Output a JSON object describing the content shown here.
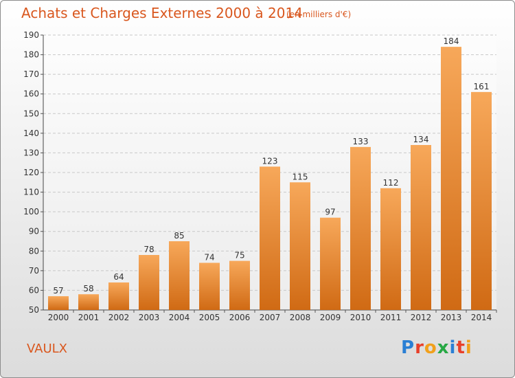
{
  "header": {
    "title": "Achats et Charges Externes 2000 à 2014",
    "subtitle": "(en milliers d'€)"
  },
  "footer": {
    "commune": "VAULX",
    "logo_text": "Proxiti",
    "logo_colors": [
      "#2a7fd4",
      "#e8402a",
      "#f1a01c",
      "#27a844",
      "#2a7fd4",
      "#e8402a",
      "#f1a01c"
    ]
  },
  "colors": {
    "bar_light": "#f7a85a",
    "bar_dark": "#d06a14",
    "title": "#d9571e"
  },
  "chart_data": {
    "type": "bar",
    "categories": [
      "2000",
      "2001",
      "2002",
      "2003",
      "2004",
      "2005",
      "2006",
      "2007",
      "2008",
      "2009",
      "2010",
      "2011",
      "2012",
      "2013",
      "2014"
    ],
    "values": [
      57,
      58,
      64,
      78,
      85,
      74,
      75,
      123,
      115,
      97,
      133,
      112,
      134,
      184,
      161
    ],
    "title": "Achats et Charges Externes 2000 à 2014",
    "ylim": [
      50,
      190
    ],
    "yticks": [
      50,
      60,
      70,
      80,
      90,
      100,
      110,
      120,
      130,
      140,
      150,
      160,
      170,
      180,
      190
    ],
    "grid": true,
    "data_labels": true
  }
}
